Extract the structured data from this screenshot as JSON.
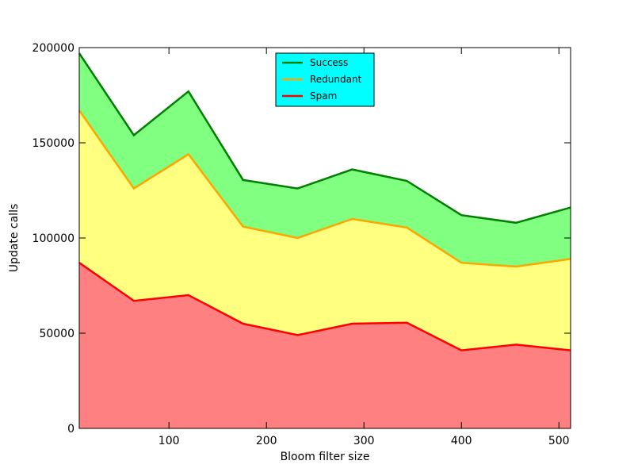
{
  "chart_data": {
    "type": "area",
    "stacked": true,
    "title": "",
    "xlabel": "Bloom filter size",
    "ylabel": "Update calls",
    "xlim": [
      8,
      512
    ],
    "ylim": [
      0,
      200000
    ],
    "x": [
      8,
      64,
      120,
      176,
      232,
      288,
      344,
      400,
      456,
      512
    ],
    "x_ticks": [
      100,
      200,
      300,
      400,
      500
    ],
    "y_ticks": [
      0,
      50000,
      100000,
      150000,
      200000
    ],
    "grid": false,
    "legend_position": "top-center",
    "legend_background": "#00ffff",
    "series": [
      {
        "name": "Spam",
        "line_color": "#ff0000",
        "fill_color": "#ff8080",
        "values": [
          87000,
          67000,
          70000,
          55000,
          49000,
          55000,
          55500,
          41000,
          44000,
          41000
        ]
      },
      {
        "name": "Redundant",
        "line_color": "#ffa500",
        "fill_color": "#ffff80",
        "values": [
          80000,
          59000,
          74000,
          51000,
          51000,
          55000,
          50000,
          46000,
          41000,
          48000
        ]
      },
      {
        "name": "Success",
        "line_color": "#008000",
        "fill_color": "#80ff80",
        "values": [
          30000,
          28000,
          33000,
          24500,
          26000,
          26000,
          24500,
          25000,
          23000,
          27000
        ]
      }
    ],
    "legend_order": [
      "Success",
      "Redundant",
      "Spam"
    ]
  }
}
